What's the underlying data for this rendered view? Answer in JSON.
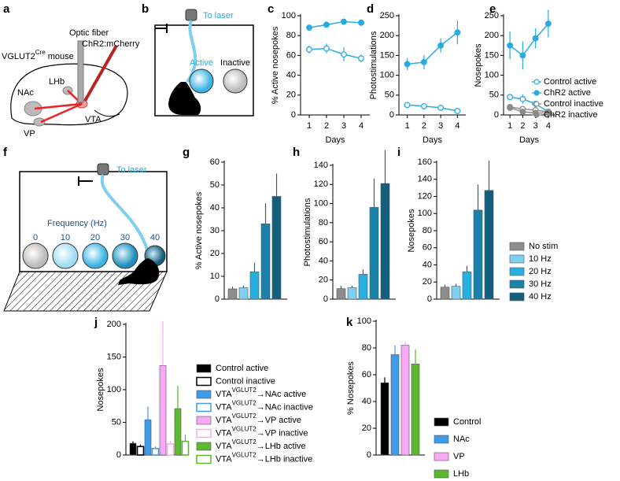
{
  "diagrams": {
    "a": {
      "panel": "a",
      "mouse": [
        "VGLUT2",
        "Cre",
        " mouse"
      ],
      "optic_fiber": "Optic fiber",
      "virus": "ChR2:mCherry",
      "nac": "NAc",
      "lhb": "LHb",
      "vp": "VP",
      "vta": "VTA"
    },
    "b": {
      "panel": "b",
      "laser": "To laser",
      "active": "Active",
      "inactive": "Inactive"
    },
    "f": {
      "panel": "f",
      "laser": "To laser",
      "frequency": "Frequency (Hz)",
      "levels": [
        "0",
        "10",
        "20",
        "30",
        "40"
      ]
    }
  },
  "chart_data": [
    {
      "type": "line",
      "panel": "c",
      "ylabel": "% Active nosepokes",
      "xlabel": "Days",
      "x": [
        1,
        2,
        3,
        4
      ],
      "xlim": [
        0.5,
        4.5
      ],
      "xticks": [
        1,
        2,
        3,
        4
      ],
      "ylim": [
        0,
        100
      ],
      "yticks": [
        0,
        20,
        40,
        60,
        80,
        100
      ],
      "series": [
        {
          "color": "#29abe2",
          "marker": "filled",
          "values": [
            88,
            91,
            94,
            93
          ],
          "errors": [
            2,
            2,
            1,
            3
          ]
        },
        {
          "color": "#29abe2",
          "marker": "open",
          "values": [
            66,
            67,
            61,
            57
          ],
          "errors": [
            4,
            5,
            7,
            4
          ]
        }
      ]
    },
    {
      "type": "line",
      "panel": "d",
      "ylabel": "Photostimulations",
      "xlabel": "Days",
      "x": [
        1,
        2,
        3,
        4
      ],
      "xlim": [
        0.5,
        4.5
      ],
      "xticks": [
        1,
        2,
        3,
        4
      ],
      "ylim": [
        0,
        250
      ],
      "yticks": [
        0,
        50,
        100,
        150,
        200,
        250
      ],
      "series": [
        {
          "color": "#29abe2",
          "marker": "filled",
          "values": [
            128,
            133,
            175,
            208
          ],
          "errors": [
            15,
            18,
            18,
            30
          ]
        },
        {
          "color": "#29abe2",
          "marker": "open",
          "values": [
            25,
            22,
            18,
            10
          ],
          "errors": [
            5,
            8,
            4,
            3
          ]
        }
      ]
    },
    {
      "type": "line",
      "panel": "e",
      "ylabel": "Nosepokes",
      "xlabel": "Days",
      "x": [
        1,
        2,
        3,
        4
      ],
      "xlim": [
        0.5,
        4.5
      ],
      "xticks": [
        1,
        2,
        3,
        4
      ],
      "ylim": [
        0,
        250
      ],
      "yticks": [
        0,
        50,
        100,
        150,
        200,
        250
      ],
      "series": [
        {
          "name": "Control active",
          "color": "#29abe2",
          "marker": "open",
          "values": [
            45,
            40,
            28,
            8
          ],
          "errors": [
            8,
            12,
            8,
            4
          ]
        },
        {
          "name": "ChR2 active",
          "color": "#29abe2",
          "marker": "filled",
          "values": [
            175,
            150,
            193,
            230
          ],
          "errors": [
            35,
            35,
            25,
            35
          ]
        },
        {
          "name": "Control inactive",
          "color": "#8a8a8a",
          "marker": "open",
          "values": [
            20,
            15,
            12,
            8
          ],
          "errors": [
            4,
            4,
            3,
            2
          ]
        },
        {
          "name": "ChR2 inactive",
          "color": "#8a8a8a",
          "marker": "filled",
          "values": [
            18,
            8,
            5,
            5
          ],
          "errors": [
            4,
            3,
            2,
            2
          ]
        }
      ]
    },
    {
      "type": "bar",
      "panel": "g",
      "ylabel": "% Active nosepokes",
      "ylim": [
        0,
        60
      ],
      "yticks": [
        0,
        10,
        20,
        30,
        40,
        50,
        60
      ],
      "bars": [
        {
          "color": "#8c8c8c",
          "value": 4.5,
          "error": 1
        },
        {
          "color": "#7fd0ef",
          "value": 5,
          "error": 1
        },
        {
          "color": "#29aee0",
          "value": 12,
          "error": 4
        },
        {
          "color": "#1a82a8",
          "value": 33,
          "error": 9
        },
        {
          "color": "#135e7b",
          "value": 45,
          "error": 10
        }
      ]
    },
    {
      "type": "bar",
      "panel": "h",
      "ylabel": "Photostimulations",
      "ylim": [
        0,
        140
      ],
      "yticks": [
        0,
        20,
        40,
        60,
        80,
        100,
        120,
        140
      ],
      "bars": [
        {
          "color": "#8c8c8c",
          "value": 11,
          "error": 3
        },
        {
          "color": "#7fd0ef",
          "value": 12,
          "error": 2
        },
        {
          "color": "#29aee0",
          "value": 26,
          "error": 5
        },
        {
          "color": "#1a82a8",
          "value": 96,
          "error": 30
        },
        {
          "color": "#135e7b",
          "value": 121,
          "error": 35
        }
      ]
    },
    {
      "type": "bar",
      "panel": "i",
      "ylabel": "Nosepokes",
      "ylim": [
        0,
        160
      ],
      "yticks": [
        0,
        20,
        40,
        60,
        80,
        100,
        120,
        140,
        160
      ],
      "bars": [
        {
          "name": "No stim",
          "color": "#8c8c8c",
          "value": 14,
          "error": 3
        },
        {
          "name": "10 Hz",
          "color": "#7fd0ef",
          "value": 15,
          "error": 3
        },
        {
          "name": "20 Hz",
          "color": "#29aee0",
          "value": 32,
          "error": 7
        },
        {
          "name": "30 Hz",
          "color": "#1a82a8",
          "value": 104,
          "error": 30
        },
        {
          "name": "40 Hz",
          "color": "#135e7b",
          "value": 127,
          "error": 35
        }
      ]
    },
    {
      "type": "bar",
      "panel": "j",
      "ylabel": "Nosepokes",
      "ylim": [
        0,
        200
      ],
      "yticks": [
        0,
        50,
        100,
        150,
        200
      ],
      "bars": [
        {
          "name": "Control active",
          "color": "#000000",
          "open": false,
          "value": 18,
          "error": 3
        },
        {
          "name": "Control inactive",
          "color": "#000000",
          "open": true,
          "value": 13,
          "error": 3
        },
        {
          "name": [
            "VTA",
            "VGLUT2",
            "→NAc active"
          ],
          "color": "#3d9be9",
          "open": false,
          "value": 54,
          "error": 20
        },
        {
          "name": [
            "VTA",
            "VGLUT2",
            "→NAc inactive"
          ],
          "color": "#3d9be9",
          "open": true,
          "value": 10,
          "error": 3
        },
        {
          "name": [
            "VTA",
            "VGLUT2",
            "→VP active"
          ],
          "color": "#f9a8f5",
          "open": false,
          "value": 137,
          "error": 68
        },
        {
          "name": [
            "VTA",
            "VGLUT2",
            "→VP inactive"
          ],
          "color": "#f9a8f5",
          "open": true,
          "value": 17,
          "error": 5
        },
        {
          "name": [
            "VTA",
            "VGLUT2",
            "→LHb active"
          ],
          "color": "#5cb82e",
          "open": false,
          "value": 71,
          "error": 35
        },
        {
          "name": [
            "VTA",
            "VGLUT2",
            "→LHb inactive"
          ],
          "color": "#5cb82e",
          "open": true,
          "value": 21,
          "error": 10
        }
      ]
    },
    {
      "type": "bar",
      "panel": "k",
      "ylabel": "% Nosepokes",
      "ylim": [
        0,
        100
      ],
      "yticks": [
        0,
        20,
        40,
        60,
        80,
        100
      ],
      "bars": [
        {
          "name": "Control",
          "color": "#000000",
          "value": 54,
          "error": 4
        },
        {
          "name": "NAc",
          "color": "#3d9be9",
          "value": 75,
          "error": 7
        },
        {
          "name": "VP",
          "color": "#f9a8f5",
          "value": 82,
          "error": 3
        },
        {
          "name": "LHb",
          "color": "#5cb82e",
          "value": 68,
          "error": 11
        }
      ]
    }
  ]
}
